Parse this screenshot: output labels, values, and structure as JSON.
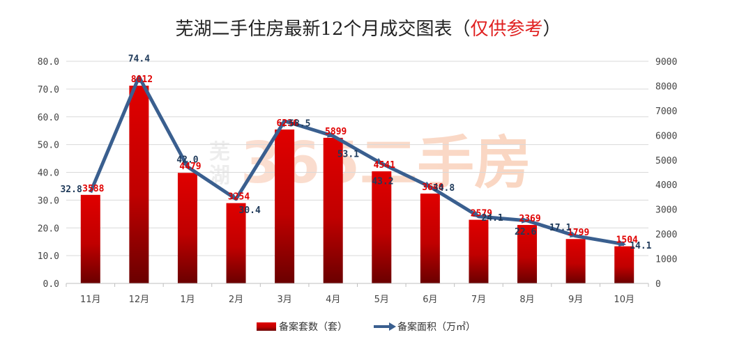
{
  "title": {
    "main": "芜湖二手住房最新12个月成交图表（",
    "note": "仅供参考",
    "close": "）"
  },
  "watermark": {
    "small_top": "芜",
    "small_bottom": "湖",
    "big": "365二手房"
  },
  "colors": {
    "bar_top": "#e00000",
    "bar_bottom": "#7a0000",
    "line": "#3a5f8f",
    "bar_label": "#e00000",
    "line_label": "#1f3a5a"
  },
  "chart_data": {
    "type": "bar",
    "categories": [
      "11月",
      "12月",
      "1月",
      "2月",
      "3月",
      "4月",
      "5月",
      "6月",
      "7月",
      "8月",
      "9月",
      "10月"
    ],
    "series": [
      {
        "name": "备案套数（套）",
        "type": "bar",
        "axis": "right",
        "values": [
          3588,
          8012,
          4479,
          3254,
          6236,
          5899,
          4541,
          3640,
          2579,
          2369,
          1799,
          1504
        ],
        "labels": [
          "3588",
          "8012",
          "4479",
          "3254",
          "6236",
          "5899",
          "4541",
          "3640",
          "2579",
          "2369",
          "1799",
          "1504"
        ]
      },
      {
        "name": "备案面积（万㎡）",
        "type": "line",
        "axis": "left",
        "values": [
          32.8,
          74.4,
          42.0,
          30.4,
          58.5,
          53.1,
          43.2,
          34.8,
          24.1,
          22.6,
          17.1,
          14.1
        ],
        "labels": [
          "32.8",
          "74.4",
          "42.0",
          "30.4",
          "58.5",
          "53.1",
          "43.2",
          "34.8",
          "24.1",
          "22.6",
          "17.1",
          "14.1"
        ]
      }
    ],
    "y_left": {
      "range": [
        0,
        80
      ],
      "ticks": [
        "0.0",
        "10.0",
        "20.0",
        "30.0",
        "40.0",
        "50.0",
        "60.0",
        "70.0",
        "80.0"
      ]
    },
    "y_right": {
      "range": [
        0,
        9000
      ],
      "ticks": [
        "0",
        "1000",
        "2000",
        "3000",
        "4000",
        "5000",
        "6000",
        "7000",
        "8000",
        "9000"
      ]
    },
    "grid": true,
    "legend": "bottom"
  }
}
